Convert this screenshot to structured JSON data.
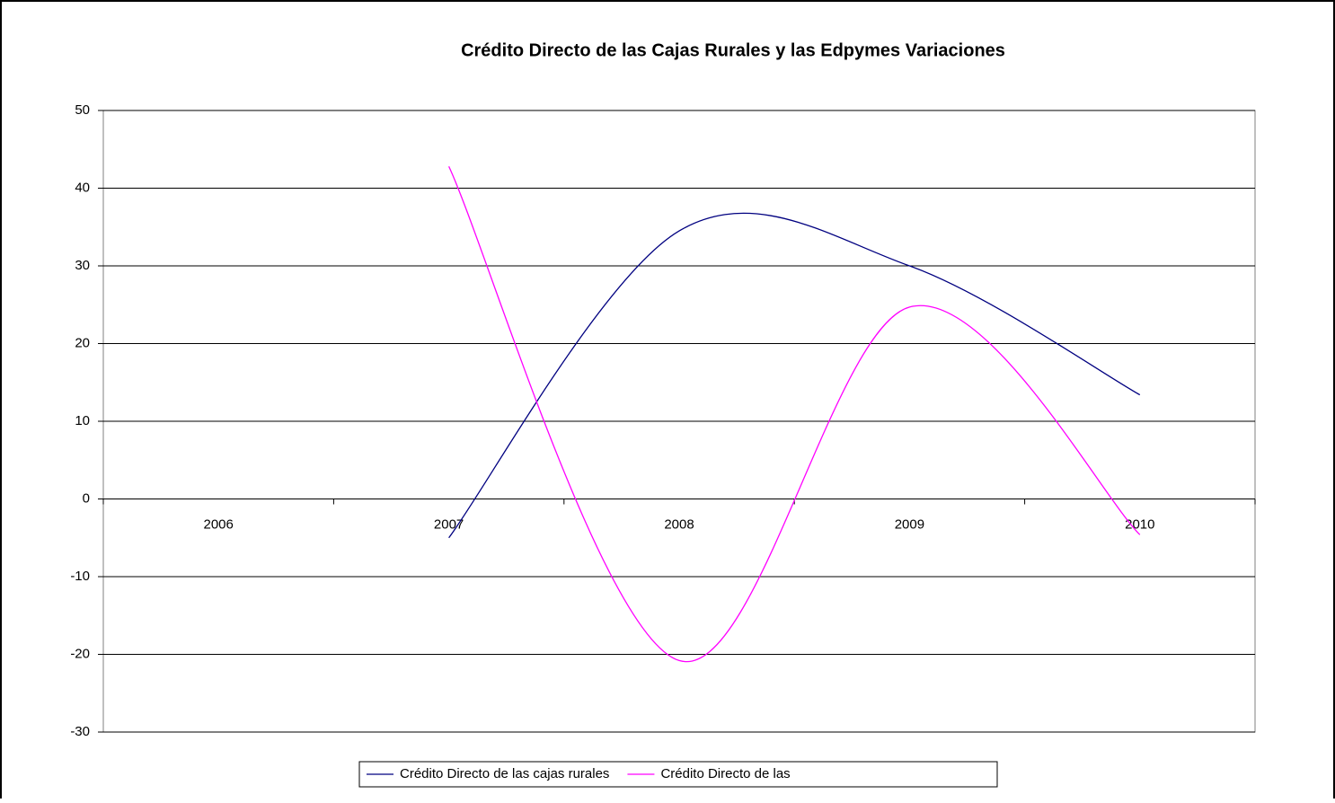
{
  "chart_data": {
    "type": "line",
    "title": "Crédito Directo de las Cajas Rurales y las Edpymes  Variaciones",
    "categories": [
      "2006",
      "2007",
      "2008",
      "2009",
      "2010"
    ],
    "series": [
      {
        "name": "Crédito Directo de las cajas rurales",
        "color": "#000080",
        "values": [
          null,
          -5,
          34.5,
          30,
          13.4
        ]
      },
      {
        "name": "Crédito Directo de las",
        "color": "#ff00ff",
        "values": [
          null,
          42.8,
          -20.8,
          24.7,
          -4.6
        ]
      }
    ],
    "ylim": [
      -30,
      50
    ],
    "yticks": [
      -30,
      -20,
      -10,
      0,
      10,
      20,
      30,
      40,
      50
    ],
    "grid": true,
    "smooth": true,
    "legend": "bottom"
  }
}
